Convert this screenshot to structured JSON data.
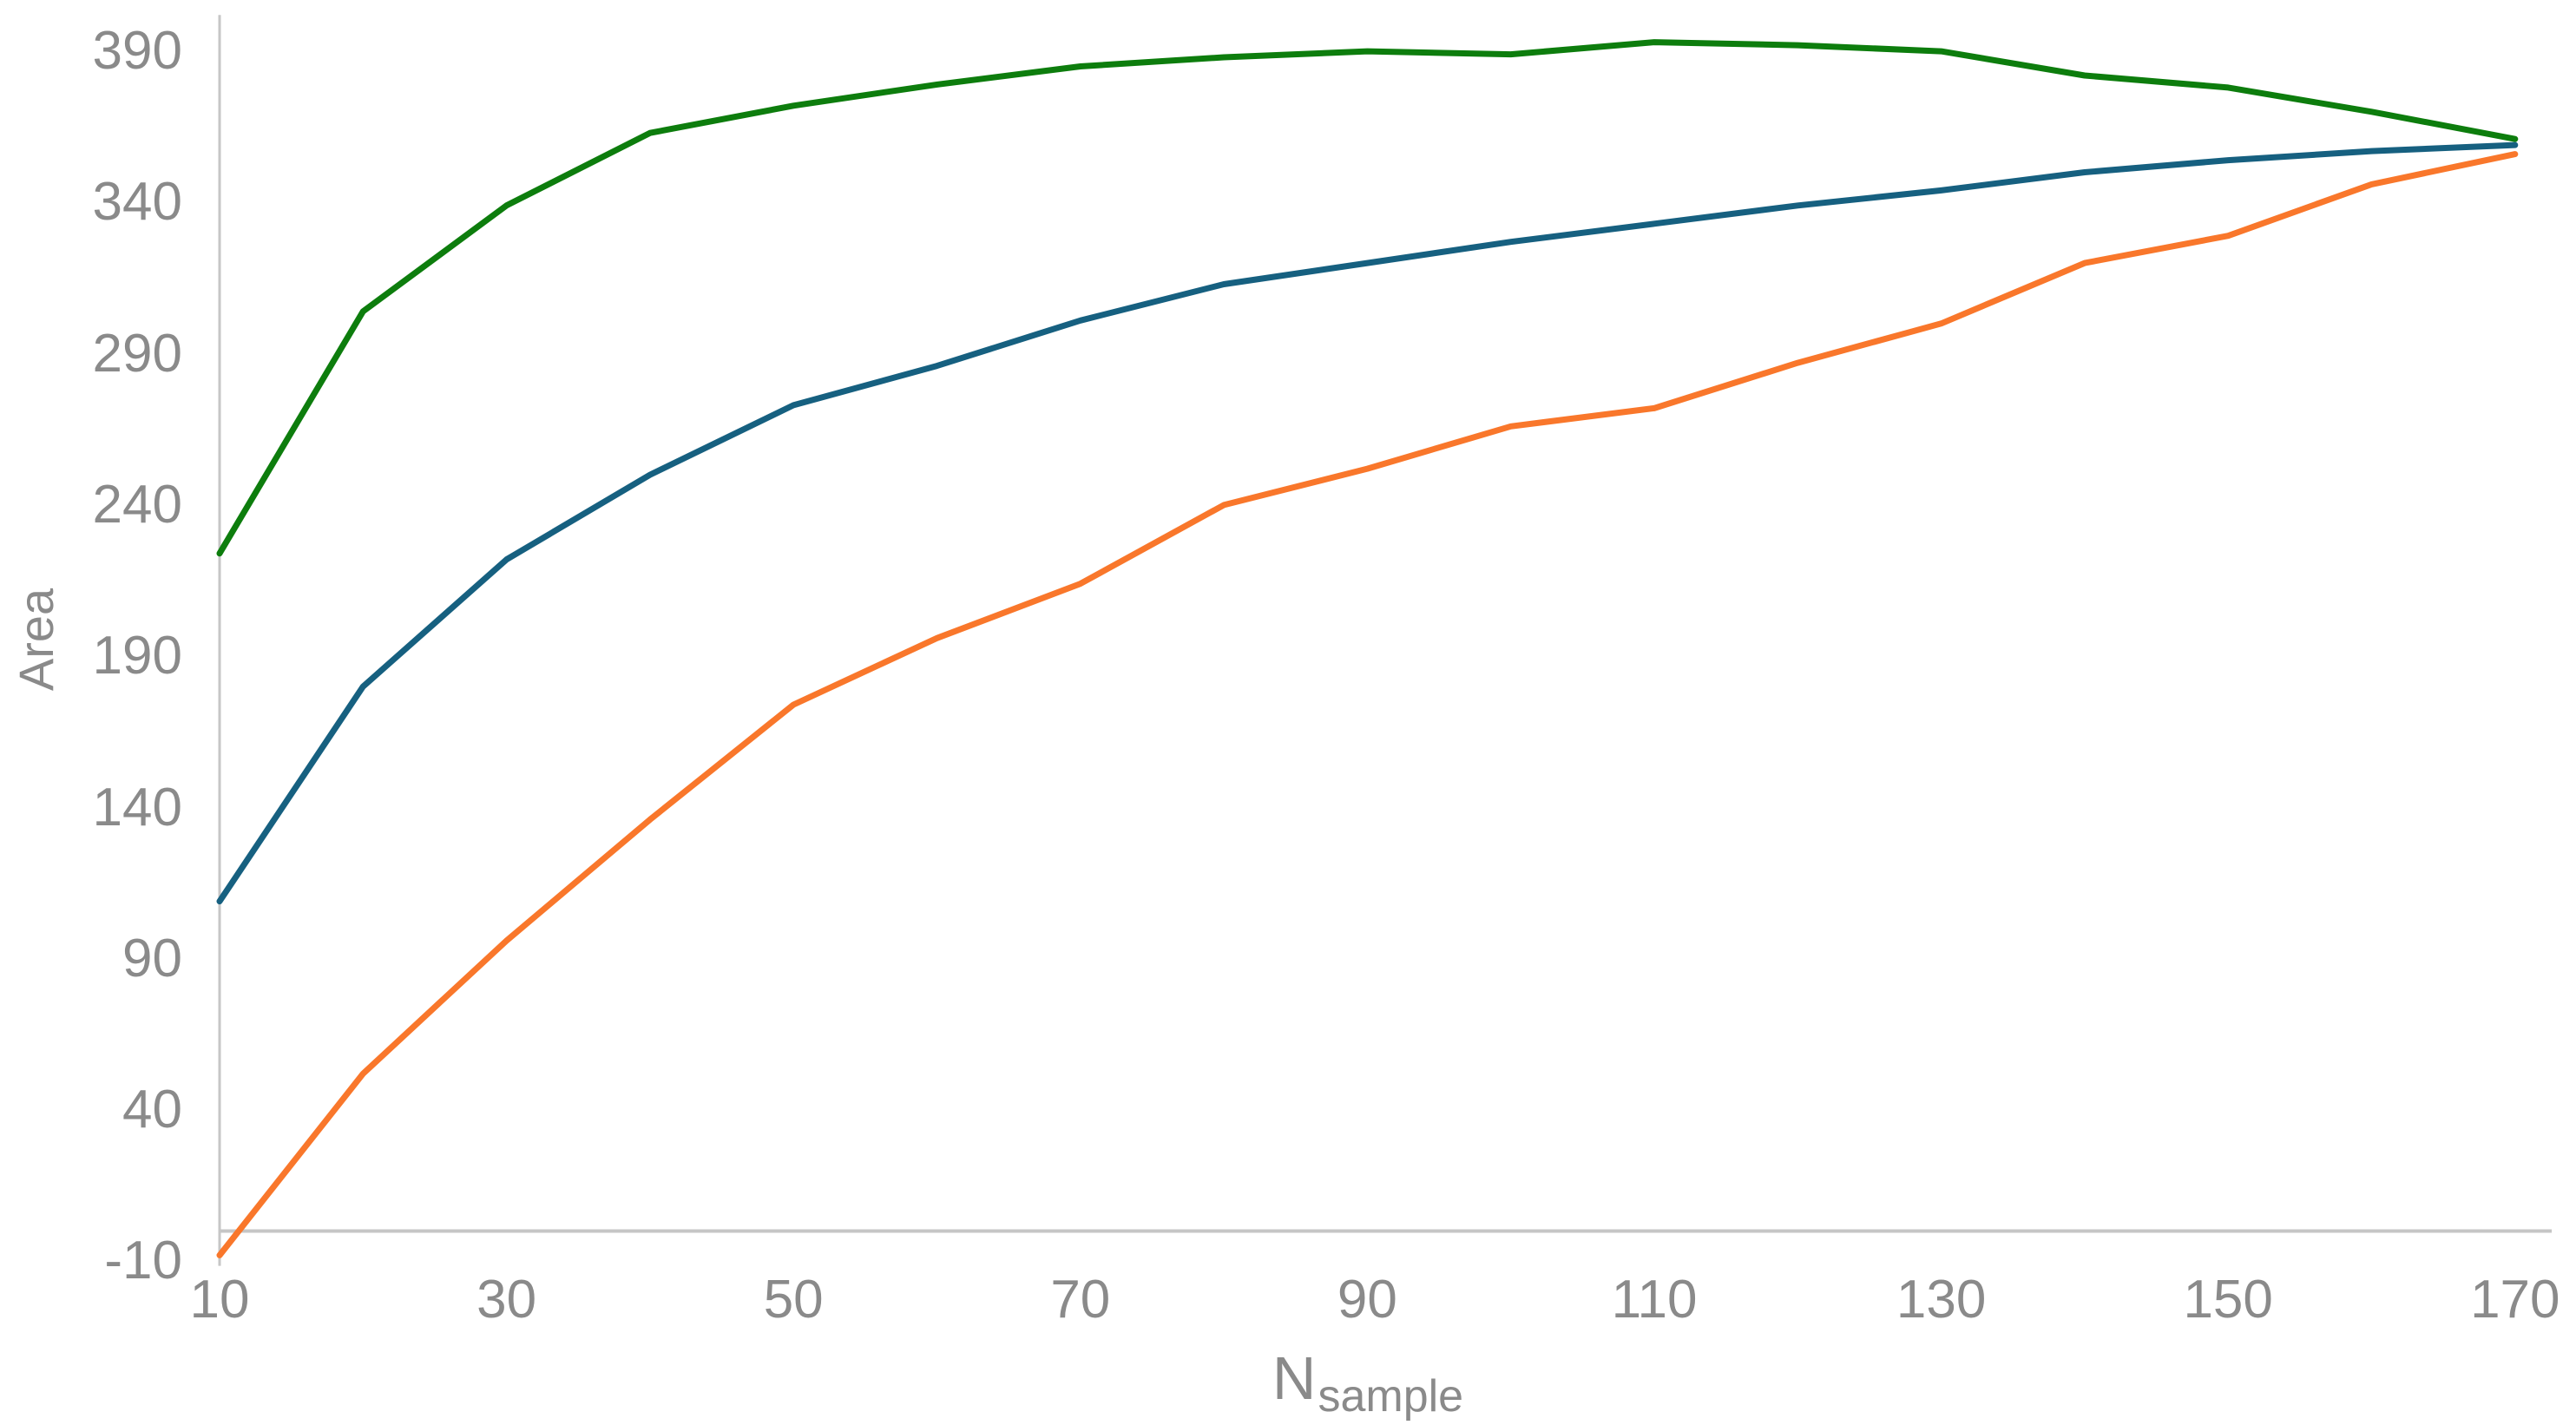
{
  "chart_data": {
    "type": "line",
    "title": "",
    "ylabel": "Area",
    "xlabel_base": "N",
    "xlabel_sub": "sample",
    "x": [
      10,
      20,
      30,
      40,
      50,
      60,
      70,
      80,
      90,
      100,
      110,
      120,
      130,
      140,
      150,
      160,
      170
    ],
    "series": [
      {
        "name": "green",
        "color": "#0d7d0d",
        "values": [
          224,
          304,
          339,
          363,
          372,
          379,
          385,
          388,
          390,
          389,
          393,
          392,
          390,
          382,
          378,
          370,
          361
        ]
      },
      {
        "name": "blue",
        "color": "#166080",
        "values": [
          109,
          180,
          222,
          250,
          273,
          286,
          301,
          313,
          320,
          327,
          333,
          339,
          344,
          350,
          354,
          357,
          359
        ]
      },
      {
        "name": "orange",
        "color": "#f9772b",
        "values": [
          -8,
          52,
          96,
          136,
          174,
          196,
          214,
          240,
          252,
          266,
          272,
          287,
          300,
          320,
          329,
          346,
          356
        ]
      }
    ],
    "x_ticks": [
      10,
      30,
      50,
      70,
      90,
      110,
      130,
      150,
      170
    ],
    "y_ticks": [
      -10,
      40,
      90,
      140,
      190,
      240,
      290,
      340,
      390
    ],
    "xlim": [
      10,
      170
    ],
    "ylim": [
      -11.5,
      402
    ],
    "axis_cross_y": 0,
    "grid": false,
    "legend": "none",
    "line_width": 7,
    "axis_color": "#c6c6c6",
    "tick_label_color": "#8a8a8a"
  }
}
